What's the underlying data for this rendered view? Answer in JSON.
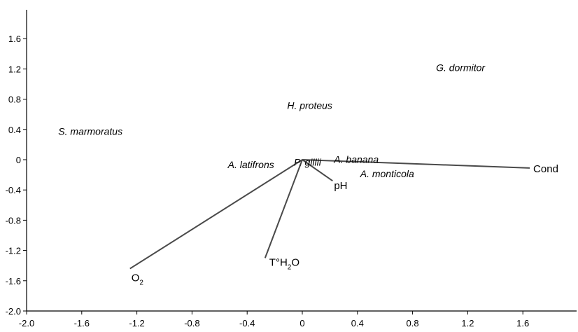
{
  "chart_data": {
    "type": "scatter",
    "title": "",
    "xlabel": "",
    "ylabel": "",
    "xlim": [
      -2.0,
      2.0
    ],
    "ylim": [
      -2.0,
      2.0
    ],
    "x_ticks": [
      -2.0,
      -1.6,
      -1.2,
      -0.8,
      -0.4,
      0,
      0.4,
      0.8,
      1.2,
      1.6
    ],
    "x_tick_labels": [
      "-2.0",
      "-1.6",
      "-1.2",
      "-0.8",
      "-0.4",
      "0",
      "0.4",
      "0.8",
      "1.2",
      "1.6"
    ],
    "y_ticks": [
      1.6,
      1.2,
      0.8,
      0.4,
      0,
      -0.4,
      -0.8,
      -1.2,
      -1.6,
      -2.0
    ],
    "y_tick_labels": [
      "1.6",
      "1.2",
      "0.8",
      "0.4",
      "0",
      "-0.4",
      "-0.8",
      "-1.2",
      "-1.6",
      "-2.0"
    ],
    "grid": false,
    "species": [
      {
        "name": "S. marmoratus",
        "x": -1.77,
        "y": 0.33
      },
      {
        "name": "H. proteus",
        "x": -0.11,
        "y": 0.67
      },
      {
        "name": "G. dormitor",
        "x": 0.97,
        "y": 1.17
      },
      {
        "name": "A. latifrons",
        "x": -0.54,
        "y": -0.11
      },
      {
        "name": "P. gillii",
        "x": -0.06,
        "y": -0.08
      },
      {
        "name": "A. banana",
        "x": 0.23,
        "y": -0.04
      },
      {
        "name": "A. monticola",
        "x": 0.42,
        "y": -0.23
      }
    ],
    "vectors": [
      {
        "name": "Cond",
        "name_sub": "",
        "name_tail": "",
        "x": 1.65,
        "y": -0.11
      },
      {
        "name": "pH",
        "name_sub": "",
        "name_tail": "",
        "x": 0.22,
        "y": -0.28
      },
      {
        "name": "T°H",
        "name_sub": "2",
        "name_tail": "O",
        "x": -0.27,
        "y": -1.3
      },
      {
        "name": "O",
        "name_sub": "2",
        "name_tail": "",
        "x": -1.25,
        "y": -1.44
      }
    ],
    "vector_origin": [
      0.0,
      0.0
    ]
  }
}
